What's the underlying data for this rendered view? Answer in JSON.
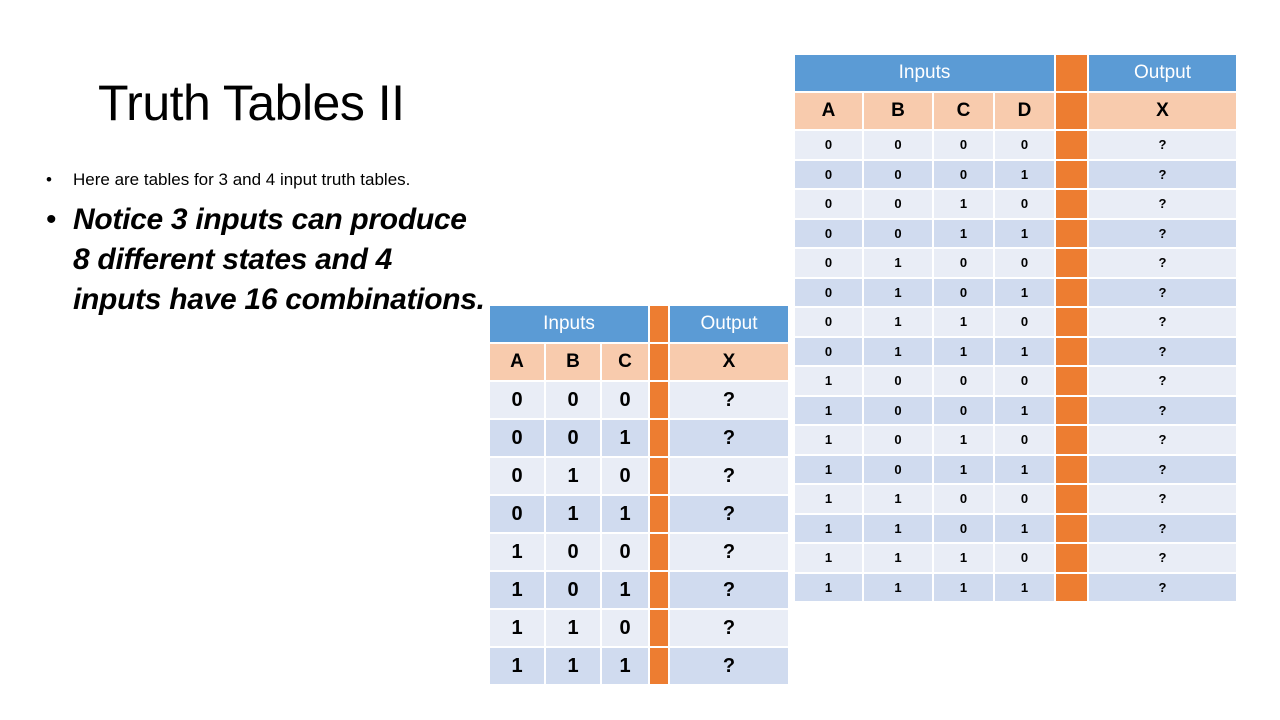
{
  "slide": {
    "title": "Truth Tables II",
    "bullets": [
      "Here are tables for 3 and 4 input truth tables.",
      "Notice 3 inputs can produce 8 different states and 4 inputs have 16 combinations."
    ]
  },
  "table3": {
    "header_inputs": "Inputs",
    "header_output": "Output",
    "columns": [
      "A",
      "B",
      "C"
    ],
    "output_column": "X",
    "rows": [
      [
        "0",
        "0",
        "0",
        "?"
      ],
      [
        "0",
        "0",
        "1",
        "?"
      ],
      [
        "0",
        "1",
        "0",
        "?"
      ],
      [
        "0",
        "1",
        "1",
        "?"
      ],
      [
        "1",
        "0",
        "0",
        "?"
      ],
      [
        "1",
        "0",
        "1",
        "?"
      ],
      [
        "1",
        "1",
        "0",
        "?"
      ],
      [
        "1",
        "1",
        "1",
        "?"
      ]
    ]
  },
  "table4": {
    "header_inputs": "Inputs",
    "header_output": "Output",
    "columns": [
      "A",
      "B",
      "C",
      "D"
    ],
    "output_column": "X",
    "rows": [
      [
        "0",
        "0",
        "0",
        "0",
        "?"
      ],
      [
        "0",
        "0",
        "0",
        "1",
        "?"
      ],
      [
        "0",
        "0",
        "1",
        "0",
        "?"
      ],
      [
        "0",
        "0",
        "1",
        "1",
        "?"
      ],
      [
        "0",
        "1",
        "0",
        "0",
        "?"
      ],
      [
        "0",
        "1",
        "0",
        "1",
        "?"
      ],
      [
        "0",
        "1",
        "1",
        "0",
        "?"
      ],
      [
        "0",
        "1",
        "1",
        "1",
        "?"
      ],
      [
        "1",
        "0",
        "0",
        "0",
        "?"
      ],
      [
        "1",
        "0",
        "0",
        "1",
        "?"
      ],
      [
        "1",
        "0",
        "1",
        "0",
        "?"
      ],
      [
        "1",
        "0",
        "1",
        "1",
        "?"
      ],
      [
        "1",
        "1",
        "0",
        "0",
        "?"
      ],
      [
        "1",
        "1",
        "0",
        "1",
        "?"
      ],
      [
        "1",
        "1",
        "1",
        "0",
        "?"
      ],
      [
        "1",
        "1",
        "1",
        "1",
        "?"
      ]
    ]
  },
  "colors": {
    "header_blue": "#5b9bd5",
    "accent_orange": "#ed7d31",
    "subheader_peach": "#f8cbad",
    "row_light": "#e9edf6",
    "row_dark": "#d0dbef"
  }
}
